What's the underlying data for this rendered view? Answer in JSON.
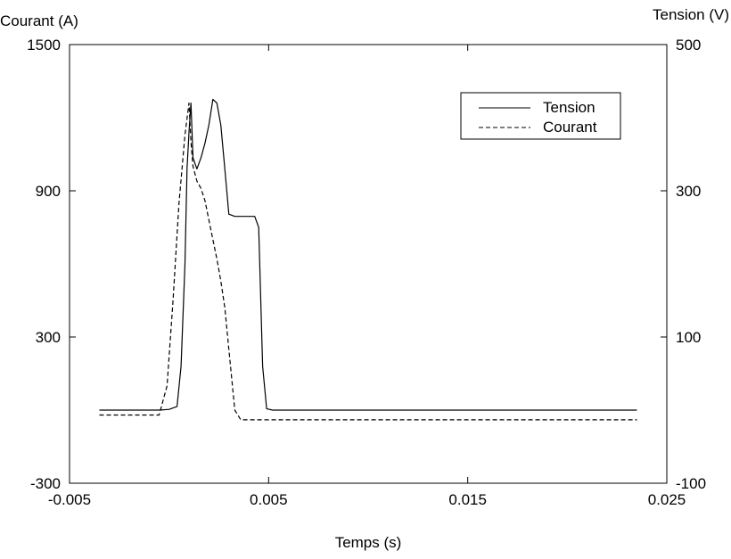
{
  "chart_data": {
    "type": "line",
    "title": "",
    "xlabel": "Temps (s)",
    "ylabel_left": "Courant (A)",
    "ylabel_right": "Tension (V)",
    "xlim": [
      -0.005,
      0.025
    ],
    "ylim_left": [
      -300,
      1500
    ],
    "ylim_right": [
      -100,
      500
    ],
    "x_ticks": [
      "-0.005",
      "0.005",
      "0.015",
      "0.025"
    ],
    "y_left_ticks": [
      "-300",
      "300",
      "900",
      "1500"
    ],
    "y_right_ticks": [
      "-100",
      "100",
      "300",
      "500"
    ],
    "grid": false,
    "legend_position": "top-right",
    "series": [
      {
        "name": "Tension",
        "axis": "right",
        "style": "solid",
        "color": "#000000",
        "x": [
          -0.0035,
          -0.0005,
          0.0,
          0.0004,
          0.0006,
          0.0008,
          0.0009,
          0.001,
          0.0011,
          0.0012,
          0.0014,
          0.0016,
          0.0018,
          0.002,
          0.0022,
          0.0024,
          0.0026,
          0.0028,
          0.003,
          0.0033,
          0.0038,
          0.0043,
          0.0045,
          0.0047,
          0.0049,
          0.0052,
          0.0065,
          0.0085,
          0.011,
          0.014,
          0.017,
          0.02,
          0.0235
        ],
        "y": [
          0,
          0,
          1,
          5,
          60,
          200,
          330,
          380,
          420,
          345,
          330,
          345,
          365,
          390,
          425,
          420,
          390,
          330,
          268,
          265,
          265,
          265,
          250,
          60,
          2,
          0,
          0,
          0,
          0,
          0,
          0,
          0,
          0
        ]
      },
      {
        "name": "Courant",
        "axis": "left",
        "style": "dashed",
        "color": "#000000",
        "x": [
          -0.0035,
          -0.0005,
          -0.0001,
          0.0002,
          0.0005,
          0.0008,
          0.001,
          0.0011,
          0.0012,
          0.0014,
          0.0016,
          0.0018,
          0.002,
          0.0022,
          0.0024,
          0.0026,
          0.0028,
          0.003,
          0.0033,
          0.0036,
          0.004,
          0.0043,
          0.0045,
          0.0047,
          0.005,
          0.007,
          0.01,
          0.013,
          0.016,
          0.02,
          0.0235
        ],
        "y": [
          -20,
          -20,
          100,
          450,
          850,
          1130,
          1260,
          1100,
          1000,
          940,
          910,
          860,
          780,
          700,
          620,
          530,
          420,
          250,
          0,
          -40,
          -40,
          -40,
          -40,
          -40,
          -40,
          -40,
          -40,
          -40,
          -40,
          -40,
          -40
        ]
      }
    ]
  }
}
